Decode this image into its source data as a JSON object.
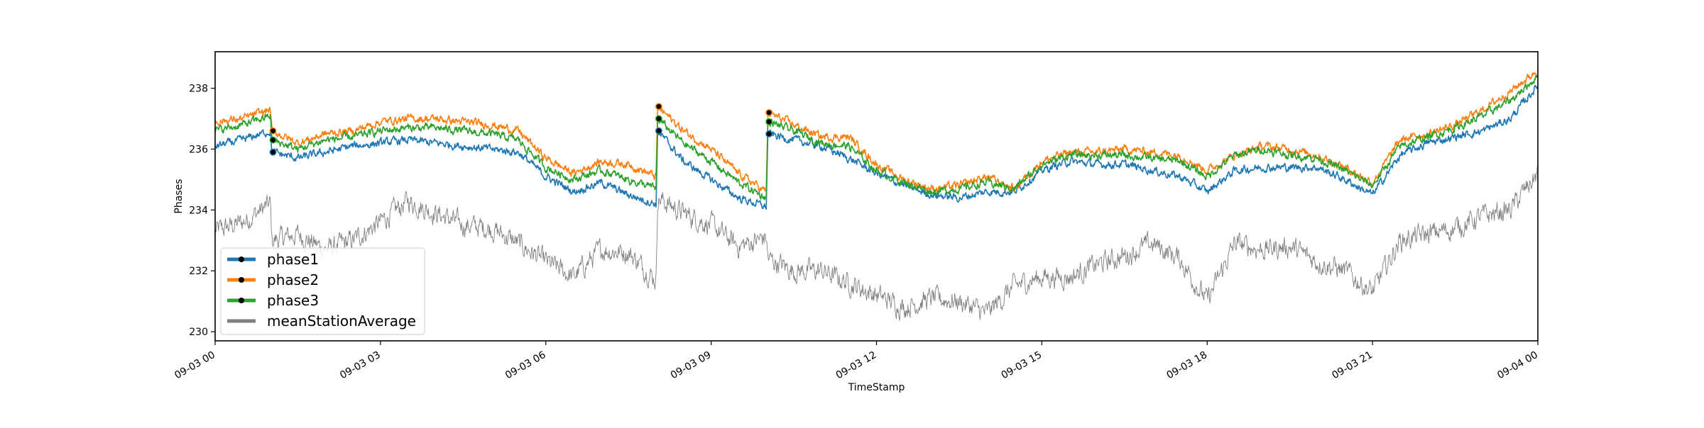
{
  "chart_data": {
    "type": "line",
    "title": "",
    "xlabel": "TimeStamp",
    "ylabel": "Phases",
    "xlim": [
      "09-03 00:00",
      "09-04 00:00"
    ],
    "ylim": [
      229.7,
      239.2
    ],
    "grid": false,
    "legend_position": "bottom-left",
    "x_ticks": [
      {
        "label": "09-03 00",
        "hour": 0
      },
      {
        "label": "09-03 03",
        "hour": 3
      },
      {
        "label": "09-03 06",
        "hour": 6
      },
      {
        "label": "09-03 09",
        "hour": 9
      },
      {
        "label": "09-03 12",
        "hour": 12
      },
      {
        "label": "09-03 15",
        "hour": 15
      },
      {
        "label": "09-03 18",
        "hour": 18
      },
      {
        "label": "09-03 21",
        "hour": 21
      },
      {
        "label": "09-04 00",
        "hour": 24
      }
    ],
    "y_ticks": [
      230,
      232,
      234,
      236,
      238
    ],
    "x_hours": [
      0,
      0.5,
      1,
      1.03,
      1.5,
      2,
      2.5,
      3,
      3.5,
      4,
      4.5,
      5,
      5.5,
      6,
      6.5,
      7,
      7.5,
      8,
      8.03,
      8.5,
      9,
      9.5,
      10,
      10.03,
      10.5,
      11,
      11.5,
      12,
      12.5,
      13,
      13.5,
      14,
      14.5,
      15,
      15.5,
      16,
      16.5,
      17,
      17.5,
      18,
      18.5,
      19,
      19.5,
      20,
      20.5,
      21,
      21.5,
      22,
      22.5,
      23,
      23.5,
      24
    ],
    "series": [
      {
        "name": "phase1",
        "color": "#1f77b4",
        "values": [
          236.1,
          236.3,
          236.6,
          235.9,
          235.7,
          235.9,
          236.1,
          236.2,
          236.3,
          236.2,
          236.1,
          236.0,
          235.9,
          235.1,
          234.6,
          234.9,
          234.5,
          234.2,
          236.6,
          235.6,
          235.0,
          234.4,
          234.1,
          236.5,
          236.3,
          236.1,
          235.7,
          235.2,
          234.8,
          234.5,
          234.4,
          234.6,
          234.6,
          235.3,
          235.6,
          235.5,
          235.5,
          235.3,
          235.1,
          234.6,
          235.3,
          235.4,
          235.4,
          235.4,
          235.0,
          234.5,
          235.8,
          236.2,
          236.4,
          236.6,
          237.0,
          238.1
        ]
      },
      {
        "name": "phase2",
        "color": "#ff7f0e",
        "values": [
          236.9,
          237.0,
          237.3,
          236.6,
          236.2,
          236.5,
          236.6,
          236.9,
          237.0,
          237.0,
          236.9,
          236.8,
          236.6,
          235.7,
          235.2,
          235.6,
          235.5,
          235.1,
          237.4,
          236.6,
          236.0,
          235.2,
          234.6,
          237.2,
          236.8,
          236.4,
          236.4,
          235.5,
          235.0,
          234.7,
          234.8,
          235.1,
          234.7,
          235.6,
          235.9,
          235.9,
          236.0,
          235.9,
          235.8,
          235.3,
          235.8,
          236.1,
          236.0,
          235.8,
          235.4,
          234.9,
          236.3,
          236.5,
          236.8,
          237.3,
          237.9,
          238.6
        ]
      },
      {
        "name": "phase3",
        "color": "#2ca02c",
        "values": [
          236.6,
          236.8,
          237.1,
          236.3,
          236.0,
          236.3,
          236.4,
          236.6,
          236.7,
          236.7,
          236.6,
          236.5,
          236.3,
          235.4,
          235.0,
          235.3,
          235.0,
          234.7,
          237.0,
          236.2,
          235.6,
          234.9,
          234.4,
          236.9,
          236.6,
          236.2,
          236.1,
          235.3,
          234.9,
          234.6,
          234.7,
          234.9,
          234.7,
          235.5,
          235.8,
          235.8,
          235.8,
          235.7,
          235.6,
          235.1,
          235.8,
          236.0,
          235.8,
          235.7,
          235.3,
          234.8,
          236.1,
          236.4,
          236.7,
          237.1,
          237.6,
          238.4
        ]
      },
      {
        "name": "meanStationAverage",
        "color": "#808080",
        "values": [
          233.3,
          233.6,
          234.2,
          233.0,
          233.2,
          232.7,
          233.0,
          233.6,
          234.3,
          233.9,
          233.5,
          233.4,
          232.9,
          232.3,
          231.8,
          232.7,
          232.6,
          231.7,
          234.4,
          233.9,
          233.5,
          232.8,
          233.1,
          232.4,
          232.0,
          232.0,
          231.6,
          231.2,
          230.8,
          231.1,
          231.0,
          230.6,
          231.5,
          231.8,
          231.8,
          232.2,
          232.5,
          232.9,
          232.4,
          231.0,
          232.9,
          232.7,
          232.8,
          232.3,
          232.0,
          231.3,
          233.0,
          233.2,
          233.4,
          233.8,
          234.0,
          235.2
        ]
      }
    ],
    "markers": [
      {
        "series": "phase1",
        "points": [
          [
            1.05,
            235.9
          ],
          [
            8.05,
            236.6
          ],
          [
            10.05,
            236.5
          ]
        ]
      },
      {
        "series": "phase2",
        "points": [
          [
            1.05,
            236.6
          ],
          [
            8.05,
            237.4
          ],
          [
            10.05,
            237.2
          ]
        ]
      },
      {
        "series": "phase3",
        "points": [
          [
            1.05,
            236.3
          ],
          [
            8.05,
            237.0
          ],
          [
            10.05,
            236.9
          ]
        ]
      }
    ]
  }
}
